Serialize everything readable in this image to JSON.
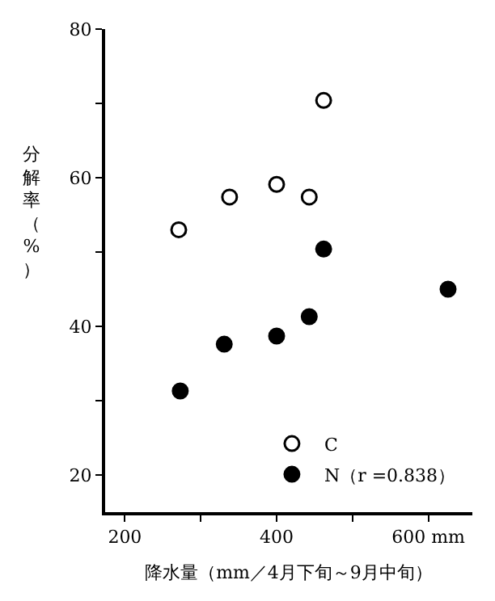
{
  "chart_data": {
    "type": "scatter",
    "xlabel": "降水量（mm／4月下旬～9月中旬）",
    "ylabel": "分解率（%）",
    "xlim": [
      174,
      658
    ],
    "ylim": [
      15,
      80
    ],
    "xticks": [
      200,
      {
        "value": 300,
        "label": null
      },
      400,
      {
        "value": 500,
        "label": null
      },
      {
        "value": 600,
        "label": "600 mm"
      }
    ],
    "yticks": [
      {
        "value": 20,
        "label": "20"
      },
      {
        "value": 30,
        "label": null
      },
      40,
      {
        "value": 50,
        "label": null
      },
      60,
      {
        "value": 70,
        "label": null
      },
      80
    ],
    "legend": "bottom right",
    "series": [
      {
        "name": "C",
        "color": "#000000",
        "marker": "circle-open",
        "x": [
          271,
          338,
          400,
          443,
          462
        ],
        "values": [
          53.0,
          57.4,
          59.1,
          57.4,
          70.4
        ]
      },
      {
        "name": "N（r =0.838）",
        "color": "#000000",
        "marker": "circle",
        "x": [
          273,
          331,
          400,
          443,
          462,
          626
        ],
        "values": [
          31.3,
          37.6,
          38.7,
          41.3,
          50.4,
          45.0
        ]
      }
    ]
  }
}
